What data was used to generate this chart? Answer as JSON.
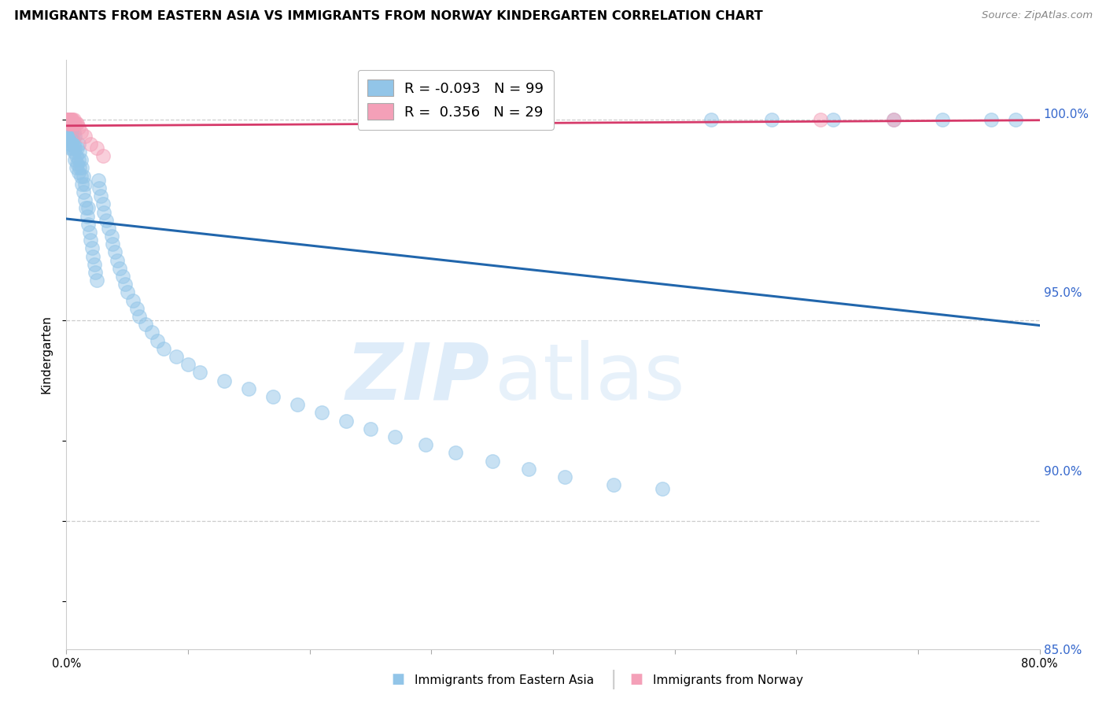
{
  "title": "IMMIGRANTS FROM EASTERN ASIA VS IMMIGRANTS FROM NORWAY KINDERGARTEN CORRELATION CHART",
  "source": "Source: ZipAtlas.com",
  "ylabel": "Kindergarten",
  "legend_blue_R": "-0.093",
  "legend_blue_N": "99",
  "legend_pink_R": "0.356",
  "legend_pink_N": "29",
  "blue_color": "#92c5e8",
  "pink_color": "#f4a0b8",
  "blue_line_color": "#2166ac",
  "pink_line_color": "#d63a6a",
  "background_color": "#ffffff",
  "xlim": [
    0.0,
    0.8
  ],
  "ylim": [
    0.868,
    1.015
  ],
  "blue_x": [
    0.001,
    0.001,
    0.001,
    0.002,
    0.002,
    0.002,
    0.002,
    0.003,
    0.003,
    0.003,
    0.003,
    0.003,
    0.004,
    0.004,
    0.004,
    0.005,
    0.005,
    0.005,
    0.006,
    0.006,
    0.006,
    0.007,
    0.007,
    0.007,
    0.008,
    0.008,
    0.009,
    0.009,
    0.01,
    0.01,
    0.01,
    0.011,
    0.011,
    0.012,
    0.012,
    0.013,
    0.013,
    0.014,
    0.014,
    0.015,
    0.015,
    0.016,
    0.017,
    0.018,
    0.018,
    0.019,
    0.02,
    0.021,
    0.022,
    0.023,
    0.024,
    0.025,
    0.026,
    0.027,
    0.028,
    0.03,
    0.031,
    0.033,
    0.035,
    0.037,
    0.038,
    0.04,
    0.042,
    0.044,
    0.046,
    0.048,
    0.05,
    0.055,
    0.058,
    0.06,
    0.065,
    0.07,
    0.075,
    0.08,
    0.09,
    0.1,
    0.11,
    0.13,
    0.15,
    0.17,
    0.19,
    0.21,
    0.23,
    0.25,
    0.27,
    0.295,
    0.32,
    0.35,
    0.38,
    0.41,
    0.45,
    0.49,
    0.53,
    0.58,
    0.63,
    0.68,
    0.72,
    0.76,
    0.78
  ],
  "blue_y": [
    0.997,
    0.999,
    1.0,
    0.998,
    0.997,
    0.995,
    0.999,
    0.997,
    0.996,
    0.994,
    0.998,
    0.993,
    0.996,
    0.994,
    0.997,
    0.995,
    0.993,
    0.998,
    0.992,
    0.994,
    0.997,
    0.99,
    0.993,
    0.996,
    0.988,
    0.991,
    0.989,
    0.993,
    0.987,
    0.99,
    0.994,
    0.988,
    0.992,
    0.986,
    0.99,
    0.984,
    0.988,
    0.982,
    0.986,
    0.98,
    0.984,
    0.978,
    0.976,
    0.974,
    0.978,
    0.972,
    0.97,
    0.968,
    0.966,
    0.964,
    0.962,
    0.96,
    0.985,
    0.983,
    0.981,
    0.979,
    0.977,
    0.975,
    0.973,
    0.971,
    0.969,
    0.967,
    0.965,
    0.963,
    0.961,
    0.959,
    0.957,
    0.955,
    0.953,
    0.951,
    0.949,
    0.947,
    0.945,
    0.943,
    0.941,
    0.939,
    0.937,
    0.935,
    0.933,
    0.931,
    0.929,
    0.927,
    0.925,
    0.923,
    0.921,
    0.919,
    0.917,
    0.915,
    0.913,
    0.911,
    0.909,
    0.908,
    1.0,
    1.0,
    1.0,
    1.0,
    1.0,
    1.0,
    1.0
  ],
  "pink_x": [
    0.001,
    0.001,
    0.002,
    0.002,
    0.002,
    0.002,
    0.002,
    0.003,
    0.003,
    0.003,
    0.003,
    0.004,
    0.004,
    0.004,
    0.005,
    0.005,
    0.006,
    0.006,
    0.007,
    0.008,
    0.009,
    0.01,
    0.012,
    0.015,
    0.02,
    0.025,
    0.03,
    0.62,
    0.68
  ],
  "pink_y": [
    1.0,
    1.0,
    1.0,
    1.0,
    1.0,
    0.999,
    1.0,
    1.0,
    0.999,
    1.0,
    0.999,
    1.0,
    0.999,
    1.0,
    0.999,
    1.0,
    0.999,
    1.0,
    0.999,
    0.999,
    0.999,
    0.998,
    0.997,
    0.996,
    0.994,
    0.993,
    0.991,
    1.0,
    1.0
  ]
}
